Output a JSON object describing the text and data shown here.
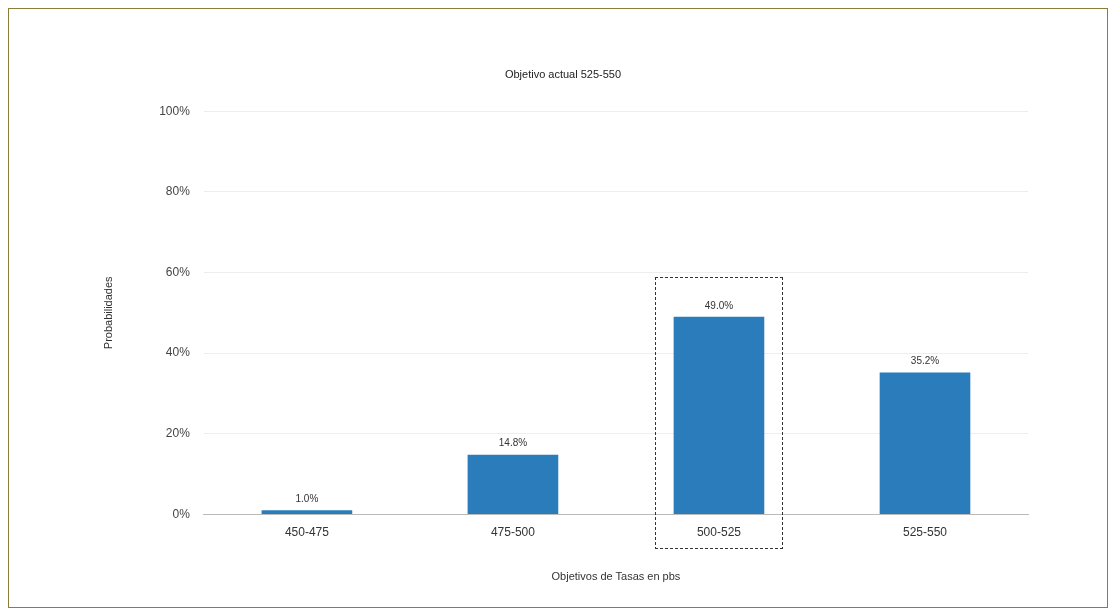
{
  "chart_data": {
    "type": "bar",
    "title": "Objetivo actual 525-550",
    "xlabel": "Objetivos de Tasas en pbs",
    "ylabel": "Probabilidades",
    "categories": [
      "450-475",
      "475-500",
      "500-525",
      "525-550"
    ],
    "values": [
      1.0,
      14.8,
      49.0,
      35.2
    ],
    "color": "#2a7cbb",
    "value_labels": [
      "1.0%",
      "14.8%",
      "49.0%",
      "35.2%"
    ],
    "ylim": [
      0,
      100
    ],
    "yticks": [
      {
        "value": 0,
        "label": "0%"
      },
      {
        "value": 20,
        "label": "20%"
      },
      {
        "value": 40,
        "label": "40%"
      },
      {
        "value": 60,
        "label": "60%"
      },
      {
        "value": 80,
        "label": "80%"
      },
      {
        "value": 100,
        "label": "100%"
      }
    ],
    "grid": "y",
    "legend": false
  }
}
